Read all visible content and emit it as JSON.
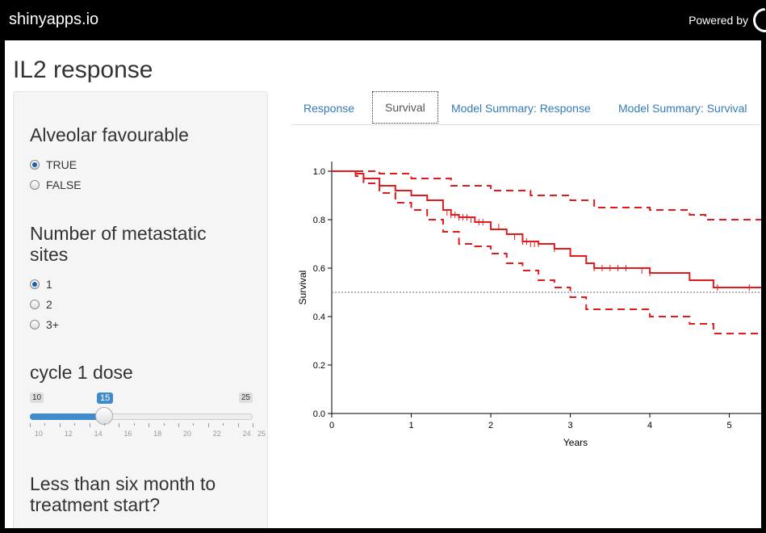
{
  "header": {
    "brand": "shinyapps.io",
    "powered_by": "Powered by"
  },
  "page": {
    "title": "IL2 response"
  },
  "sidebar": {
    "alveolar": {
      "label": "Alveolar favourable",
      "options": [
        {
          "label": "TRUE",
          "checked": true
        },
        {
          "label": "FALSE",
          "checked": false
        }
      ]
    },
    "metastatic": {
      "label_line1": "Number of metastatic",
      "label_line2": "sites",
      "options": [
        {
          "label": "1",
          "checked": true
        },
        {
          "label": "2",
          "checked": false
        },
        {
          "label": "3+",
          "checked": false
        }
      ]
    },
    "dose": {
      "label": "cycle 1 dose",
      "min": 10,
      "max": 25,
      "value": 15,
      "min_label": "10",
      "max_label": "25",
      "value_label": "15",
      "tick_labels": [
        "10",
        "12",
        "14",
        "16",
        "18",
        "20",
        "22",
        "24",
        "25"
      ]
    },
    "six_month": {
      "label_line1": "Less than six month to",
      "label_line2": "treatment start?"
    }
  },
  "tabs": [
    {
      "label": "Response",
      "active": false
    },
    {
      "label": "Survival",
      "active": true
    },
    {
      "label": "Model Summary: Response",
      "active": false
    },
    {
      "label": "Model Summary: Survival",
      "active": false
    }
  ],
  "chart_data": {
    "type": "line",
    "title": "",
    "xlabel": "Years",
    "ylabel": "Survival",
    "xlim": [
      0,
      5.4
    ],
    "ylim": [
      0,
      1
    ],
    "xticks": [
      "0",
      "1",
      "2",
      "3",
      "4",
      "5"
    ],
    "yticks": [
      "0.0",
      "0.2",
      "0.4",
      "0.6",
      "0.8",
      "1.0"
    ],
    "reference_line": {
      "y": 0.5,
      "style": "dotted",
      "color": "#888888"
    },
    "series": [
      {
        "style": "solid-step",
        "color": "#e31a1c",
        "x": [
          0,
          0.3,
          0.4,
          0.6,
          0.8,
          1.0,
          1.2,
          1.4,
          1.5,
          1.6,
          1.8,
          2.0,
          2.2,
          2.4,
          2.6,
          2.8,
          3.0,
          3.2,
          3.3,
          3.5,
          4.0,
          4.5,
          4.8,
          5.4
        ],
        "y": [
          1.0,
          0.99,
          0.97,
          0.94,
          0.92,
          0.9,
          0.88,
          0.84,
          0.82,
          0.81,
          0.79,
          0.76,
          0.74,
          0.71,
          0.7,
          0.68,
          0.65,
          0.62,
          0.6,
          0.6,
          0.58,
          0.55,
          0.52,
          0.52
        ]
      },
      {
        "style": "dashed-step",
        "color": "#e31a1c",
        "x": [
          0,
          0.3,
          0.6,
          1.0,
          1.5,
          2.0,
          2.5,
          3.0,
          3.3,
          4.0,
          4.5,
          4.7,
          5.4
        ],
        "y": [
          1.0,
          1.0,
          0.99,
          0.97,
          0.94,
          0.92,
          0.9,
          0.88,
          0.85,
          0.84,
          0.82,
          0.8,
          0.8
        ]
      },
      {
        "style": "dashed-step",
        "color": "#e31a1c",
        "x": [
          0,
          0.3,
          0.4,
          0.6,
          0.8,
          1.0,
          1.2,
          1.4,
          1.6,
          1.8,
          2.0,
          2.2,
          2.4,
          2.6,
          2.8,
          3.0,
          3.2,
          3.5,
          4.0,
          4.5,
          4.8,
          5.4
        ],
        "y": [
          1.0,
          0.98,
          0.95,
          0.91,
          0.87,
          0.84,
          0.8,
          0.75,
          0.7,
          0.69,
          0.66,
          0.62,
          0.59,
          0.55,
          0.52,
          0.48,
          0.43,
          0.43,
          0.4,
          0.37,
          0.33,
          0.33
        ]
      }
    ],
    "censor_marks": {
      "x": [
        1.45,
        1.5,
        1.55,
        1.6,
        1.65,
        1.7,
        1.75,
        1.85,
        1.9,
        2.0,
        2.1,
        2.3,
        2.4,
        2.45,
        2.5,
        2.55,
        2.6,
        2.8,
        3.3,
        3.4,
        3.5,
        3.6,
        3.7,
        3.9,
        4.0,
        4.85,
        5.25
      ],
      "y": [
        0.83,
        0.82,
        0.82,
        0.81,
        0.81,
        0.81,
        0.8,
        0.79,
        0.79,
        0.78,
        0.77,
        0.73,
        0.71,
        0.71,
        0.7,
        0.7,
        0.7,
        0.68,
        0.6,
        0.6,
        0.6,
        0.6,
        0.6,
        0.59,
        0.58,
        0.52,
        0.52
      ]
    }
  }
}
